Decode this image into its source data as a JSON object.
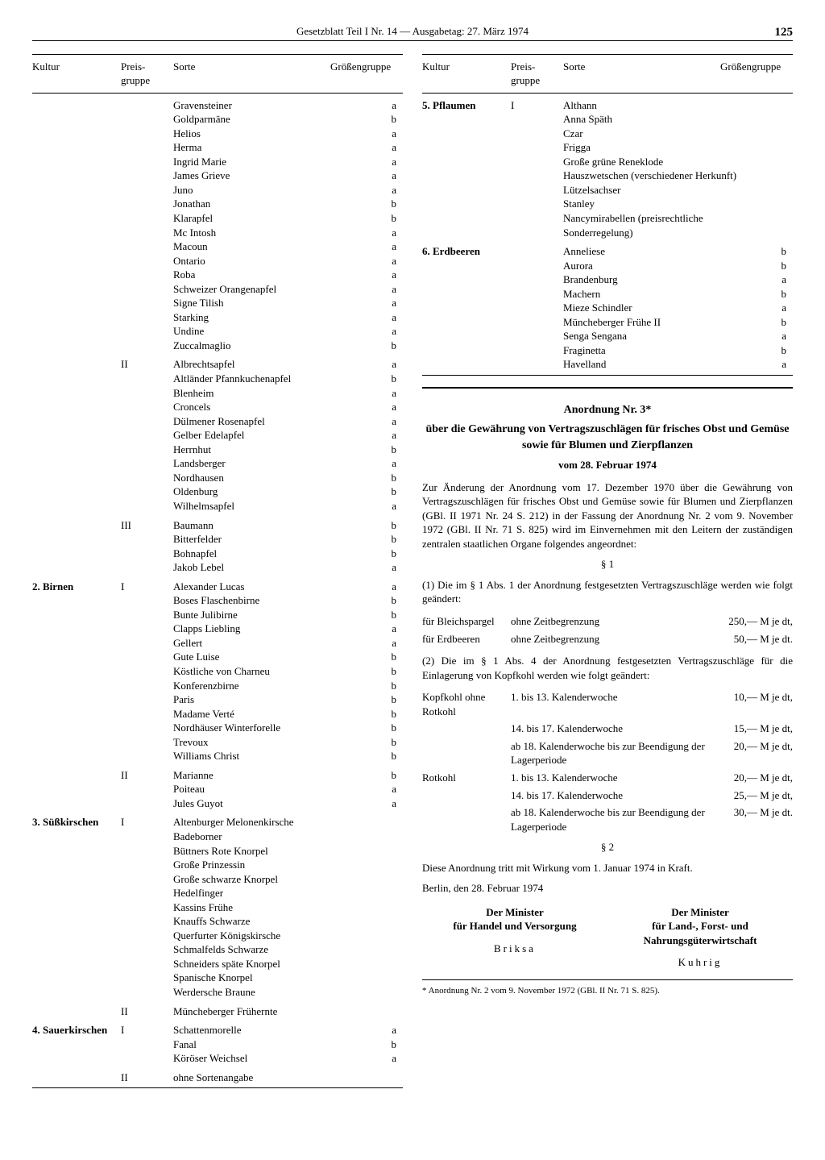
{
  "header": {
    "title": "Gesetzblatt Teil I Nr. 14 — Ausgabetag: 27. März 1974",
    "page": "125"
  },
  "tableHeaders": {
    "kultur": "Kultur",
    "preisgruppe": "Preis-\ngruppe",
    "sorte": "Sorte",
    "groessengruppe": "Größengruppe"
  },
  "leftTable": [
    {
      "kultur": "",
      "pg": "",
      "rows": [
        {
          "s": "Gravensteiner",
          "g": "a"
        },
        {
          "s": "Goldparmäne",
          "g": "b"
        },
        {
          "s": "Helios",
          "g": "a"
        },
        {
          "s": "Herma",
          "g": "a"
        },
        {
          "s": "Ingrid Marie",
          "g": "a"
        },
        {
          "s": "James Grieve",
          "g": "a"
        },
        {
          "s": "Juno",
          "g": "a"
        },
        {
          "s": "Jonathan",
          "g": "b"
        },
        {
          "s": "Klarapfel",
          "g": "b"
        },
        {
          "s": "Mc Intosh",
          "g": "a"
        },
        {
          "s": "Macoun",
          "g": "a"
        },
        {
          "s": "Ontario",
          "g": "a"
        },
        {
          "s": "Roba",
          "g": "a"
        },
        {
          "s": "Schweizer Orangenapfel",
          "g": "a"
        },
        {
          "s": "Signe Tilish",
          "g": "a"
        },
        {
          "s": "Starking",
          "g": "a"
        },
        {
          "s": "Undine",
          "g": "a"
        },
        {
          "s": "Zuccalmaglio",
          "g": "b"
        }
      ]
    },
    {
      "kultur": "",
      "pg": "II",
      "rows": [
        {
          "s": "Albrechtsapfel",
          "g": "a"
        },
        {
          "s": "Altländer Pfannkuchenapfel",
          "g": "b"
        },
        {
          "s": "Blenheim",
          "g": "a"
        },
        {
          "s": "Croncels",
          "g": "a"
        },
        {
          "s": "Dülmener Rosenapfel",
          "g": "a"
        },
        {
          "s": "Gelber Edelapfel",
          "g": "a"
        },
        {
          "s": "Herrnhut",
          "g": "b"
        },
        {
          "s": "Landsberger",
          "g": "a"
        },
        {
          "s": "Nordhausen",
          "g": "b"
        },
        {
          "s": "Oldenburg",
          "g": "b"
        },
        {
          "s": "Wilhelmsapfel",
          "g": "a"
        }
      ]
    },
    {
      "kultur": "",
      "pg": "III",
      "rows": [
        {
          "s": "Baumann",
          "g": "b"
        },
        {
          "s": "Bitterfelder",
          "g": "b"
        },
        {
          "s": "Bohnapfel",
          "g": "b"
        },
        {
          "s": "Jakob Lebel",
          "g": "a"
        }
      ]
    },
    {
      "kultur": "2.  Birnen",
      "pg": "I",
      "rows": [
        {
          "s": "Alexander Lucas",
          "g": "a"
        },
        {
          "s": "Boses Flaschenbirne",
          "g": "b"
        },
        {
          "s": "Bunte Julibirne",
          "g": "b"
        },
        {
          "s": "Clapps Liebling",
          "g": "a"
        },
        {
          "s": "Gellert",
          "g": "a"
        },
        {
          "s": "Gute Luise",
          "g": "b"
        },
        {
          "s": "Köstliche von Charneu",
          "g": "b"
        },
        {
          "s": "Konferenzbirne",
          "g": "b"
        },
        {
          "s": "Paris",
          "g": "b"
        },
        {
          "s": "Madame Verté",
          "g": "b"
        },
        {
          "s": "Nordhäuser Winterforelle",
          "g": "b"
        },
        {
          "s": "Trevoux",
          "g": "b"
        },
        {
          "s": "Williams Christ",
          "g": "b"
        }
      ]
    },
    {
      "kultur": "",
      "pg": "II",
      "rows": [
        {
          "s": "Marianne",
          "g": "b"
        },
        {
          "s": "Poiteau",
          "g": "a"
        },
        {
          "s": "Jules Guyot",
          "g": "a"
        }
      ]
    },
    {
      "kultur": "3.  Süßkirschen",
      "pg": "I",
      "rows": [
        {
          "s": "Altenburger Melonenkirsche",
          "g": ""
        },
        {
          "s": "Badeborner",
          "g": ""
        },
        {
          "s": "Büttners Rote Knorpel",
          "g": ""
        },
        {
          "s": "Große Prinzessin",
          "g": ""
        },
        {
          "s": "Große schwarze Knorpel",
          "g": ""
        },
        {
          "s": "Hedelfinger",
          "g": ""
        },
        {
          "s": "Kassins Frühe",
          "g": ""
        },
        {
          "s": "Knauffs Schwarze",
          "g": ""
        },
        {
          "s": "Querfurter Königskirsche",
          "g": ""
        },
        {
          "s": "Schmalfelds Schwarze",
          "g": ""
        },
        {
          "s": "Schneiders späte Knorpel",
          "g": ""
        },
        {
          "s": "Spanische Knorpel",
          "g": ""
        },
        {
          "s": "Werdersche Braune",
          "g": ""
        }
      ]
    },
    {
      "kultur": "",
      "pg": "II",
      "rows": [
        {
          "s": "Müncheberger Frühernte",
          "g": ""
        }
      ]
    },
    {
      "kultur": "4.  Sauerkirschen",
      "pg": "I",
      "rows": [
        {
          "s": "Schattenmorelle",
          "g": "a"
        },
        {
          "s": "Fanal",
          "g": "b"
        },
        {
          "s": "Köröser Weichsel",
          "g": "a"
        }
      ]
    },
    {
      "kultur": "",
      "pg": "II",
      "rows": [
        {
          "s": "ohne Sortenangabe",
          "g": ""
        }
      ]
    }
  ],
  "rightTable": [
    {
      "kultur": "5.  Pflaumen",
      "pg": "I",
      "rows": [
        {
          "s": "Althann",
          "g": ""
        },
        {
          "s": "Anna Späth",
          "g": ""
        },
        {
          "s": "Czar",
          "g": ""
        },
        {
          "s": "Frigga",
          "g": ""
        },
        {
          "s": "Große grüne Reneklode",
          "g": ""
        },
        {
          "s": "Hauszwetschen (verschiedener Herkunft)",
          "g": ""
        },
        {
          "s": "Lützelsachser",
          "g": ""
        },
        {
          "s": "Stanley",
          "g": ""
        },
        {
          "s": "Nancymirabellen (preisrechtliche Sonderregelung)",
          "g": ""
        }
      ]
    },
    {
      "kultur": "6.  Erdbeeren",
      "pg": "",
      "rows": [
        {
          "s": "Anneliese",
          "g": "b"
        },
        {
          "s": "Aurora",
          "g": "b"
        },
        {
          "s": "Brandenburg",
          "g": "a"
        },
        {
          "s": "Machern",
          "g": "b"
        },
        {
          "s": "Mieze Schindler",
          "g": "a"
        },
        {
          "s": "Müncheberger Frühe II",
          "g": "b"
        },
        {
          "s": "Senga Sengana",
          "g": "a"
        },
        {
          "s": "Fraginetta",
          "g": "b"
        },
        {
          "s": "Havelland",
          "g": "a"
        }
      ]
    }
  ],
  "ordinance": {
    "title": "Anordnung Nr. 3*",
    "subtitle": "über die Gewährung von Vertragszuschlägen für frisches Obst und Gemüse sowie für Blumen und Zierpflanzen",
    "date": "vom 28. Februar 1974",
    "intro": "Zur Änderung der Anordnung vom 17. Dezember 1970 über die Gewährung von Vertragszuschlägen für frisches Obst und Gemüse sowie für Blumen und Zierpflanzen (GBl. II 1971 Nr. 24 S. 212) in der Fassung der Anordnung Nr. 2 vom 9. November 1972 (GBl. II Nr. 71 S. 825) wird im Einvernehmen mit den Leitern der zuständigen zentralen staatlichen Organe folgendes angeordnet:",
    "s1": "§ 1",
    "p1": "(1) Die im § 1 Abs. 1 der Anordnung festgesetzten Vertragszuschläge werden wie folgt geändert:",
    "rates1": [
      {
        "a": "für Bleichspargel",
        "b": "ohne Zeitbegrenzung",
        "c": "250,— M je dt,"
      },
      {
        "a": "für Erdbeeren",
        "b": "ohne Zeitbegrenzung",
        "c": "50,— M je dt."
      }
    ],
    "p2": "(2) Die im § 1 Abs. 4 der Anordnung festgesetzten Vertragszuschläge für die Einlagerung von Kopfkohl werden wie folgt geändert:",
    "rates2": [
      {
        "a": "Kopfkohl ohne Rotkohl",
        "b": "1. bis 13. Kalenderwoche",
        "c": "10,— M je dt,"
      },
      {
        "a": "",
        "b": "14. bis 17. Kalenderwoche",
        "c": "15,— M je dt,"
      },
      {
        "a": "",
        "b": "ab 18. Kalenderwoche bis zur Beendigung der Lagerperiode",
        "c": "20,— M je dt,"
      },
      {
        "a": "Rotkohl",
        "b": "1. bis 13. Kalenderwoche",
        "c": "20,— M je dt,"
      },
      {
        "a": "",
        "b": "14. bis 17. Kalenderwoche",
        "c": "25,— M je dt,"
      },
      {
        "a": "",
        "b": "ab 18. Kalenderwoche bis zur Beendigung der Lagerperiode",
        "c": "30,— M je dt."
      }
    ],
    "s2": "§ 2",
    "p3": "Diese Anordnung tritt mit Wirkung vom 1. Januar 1974 in Kraft.",
    "place": "Berlin, den 28. Februar 1974",
    "sigL1": "Der Minister",
    "sigL2": "für Handel und Versorgung",
    "sigL3": "Briksa",
    "sigR1": "Der Minister",
    "sigR2": "für Land-, Forst- und Nahrungsgüterwirtschaft",
    "sigR3": "Kuhrig",
    "footnote": "* Anordnung Nr. 2 vom 9. November 1972 (GBl. II Nr. 71 S. 825)."
  }
}
